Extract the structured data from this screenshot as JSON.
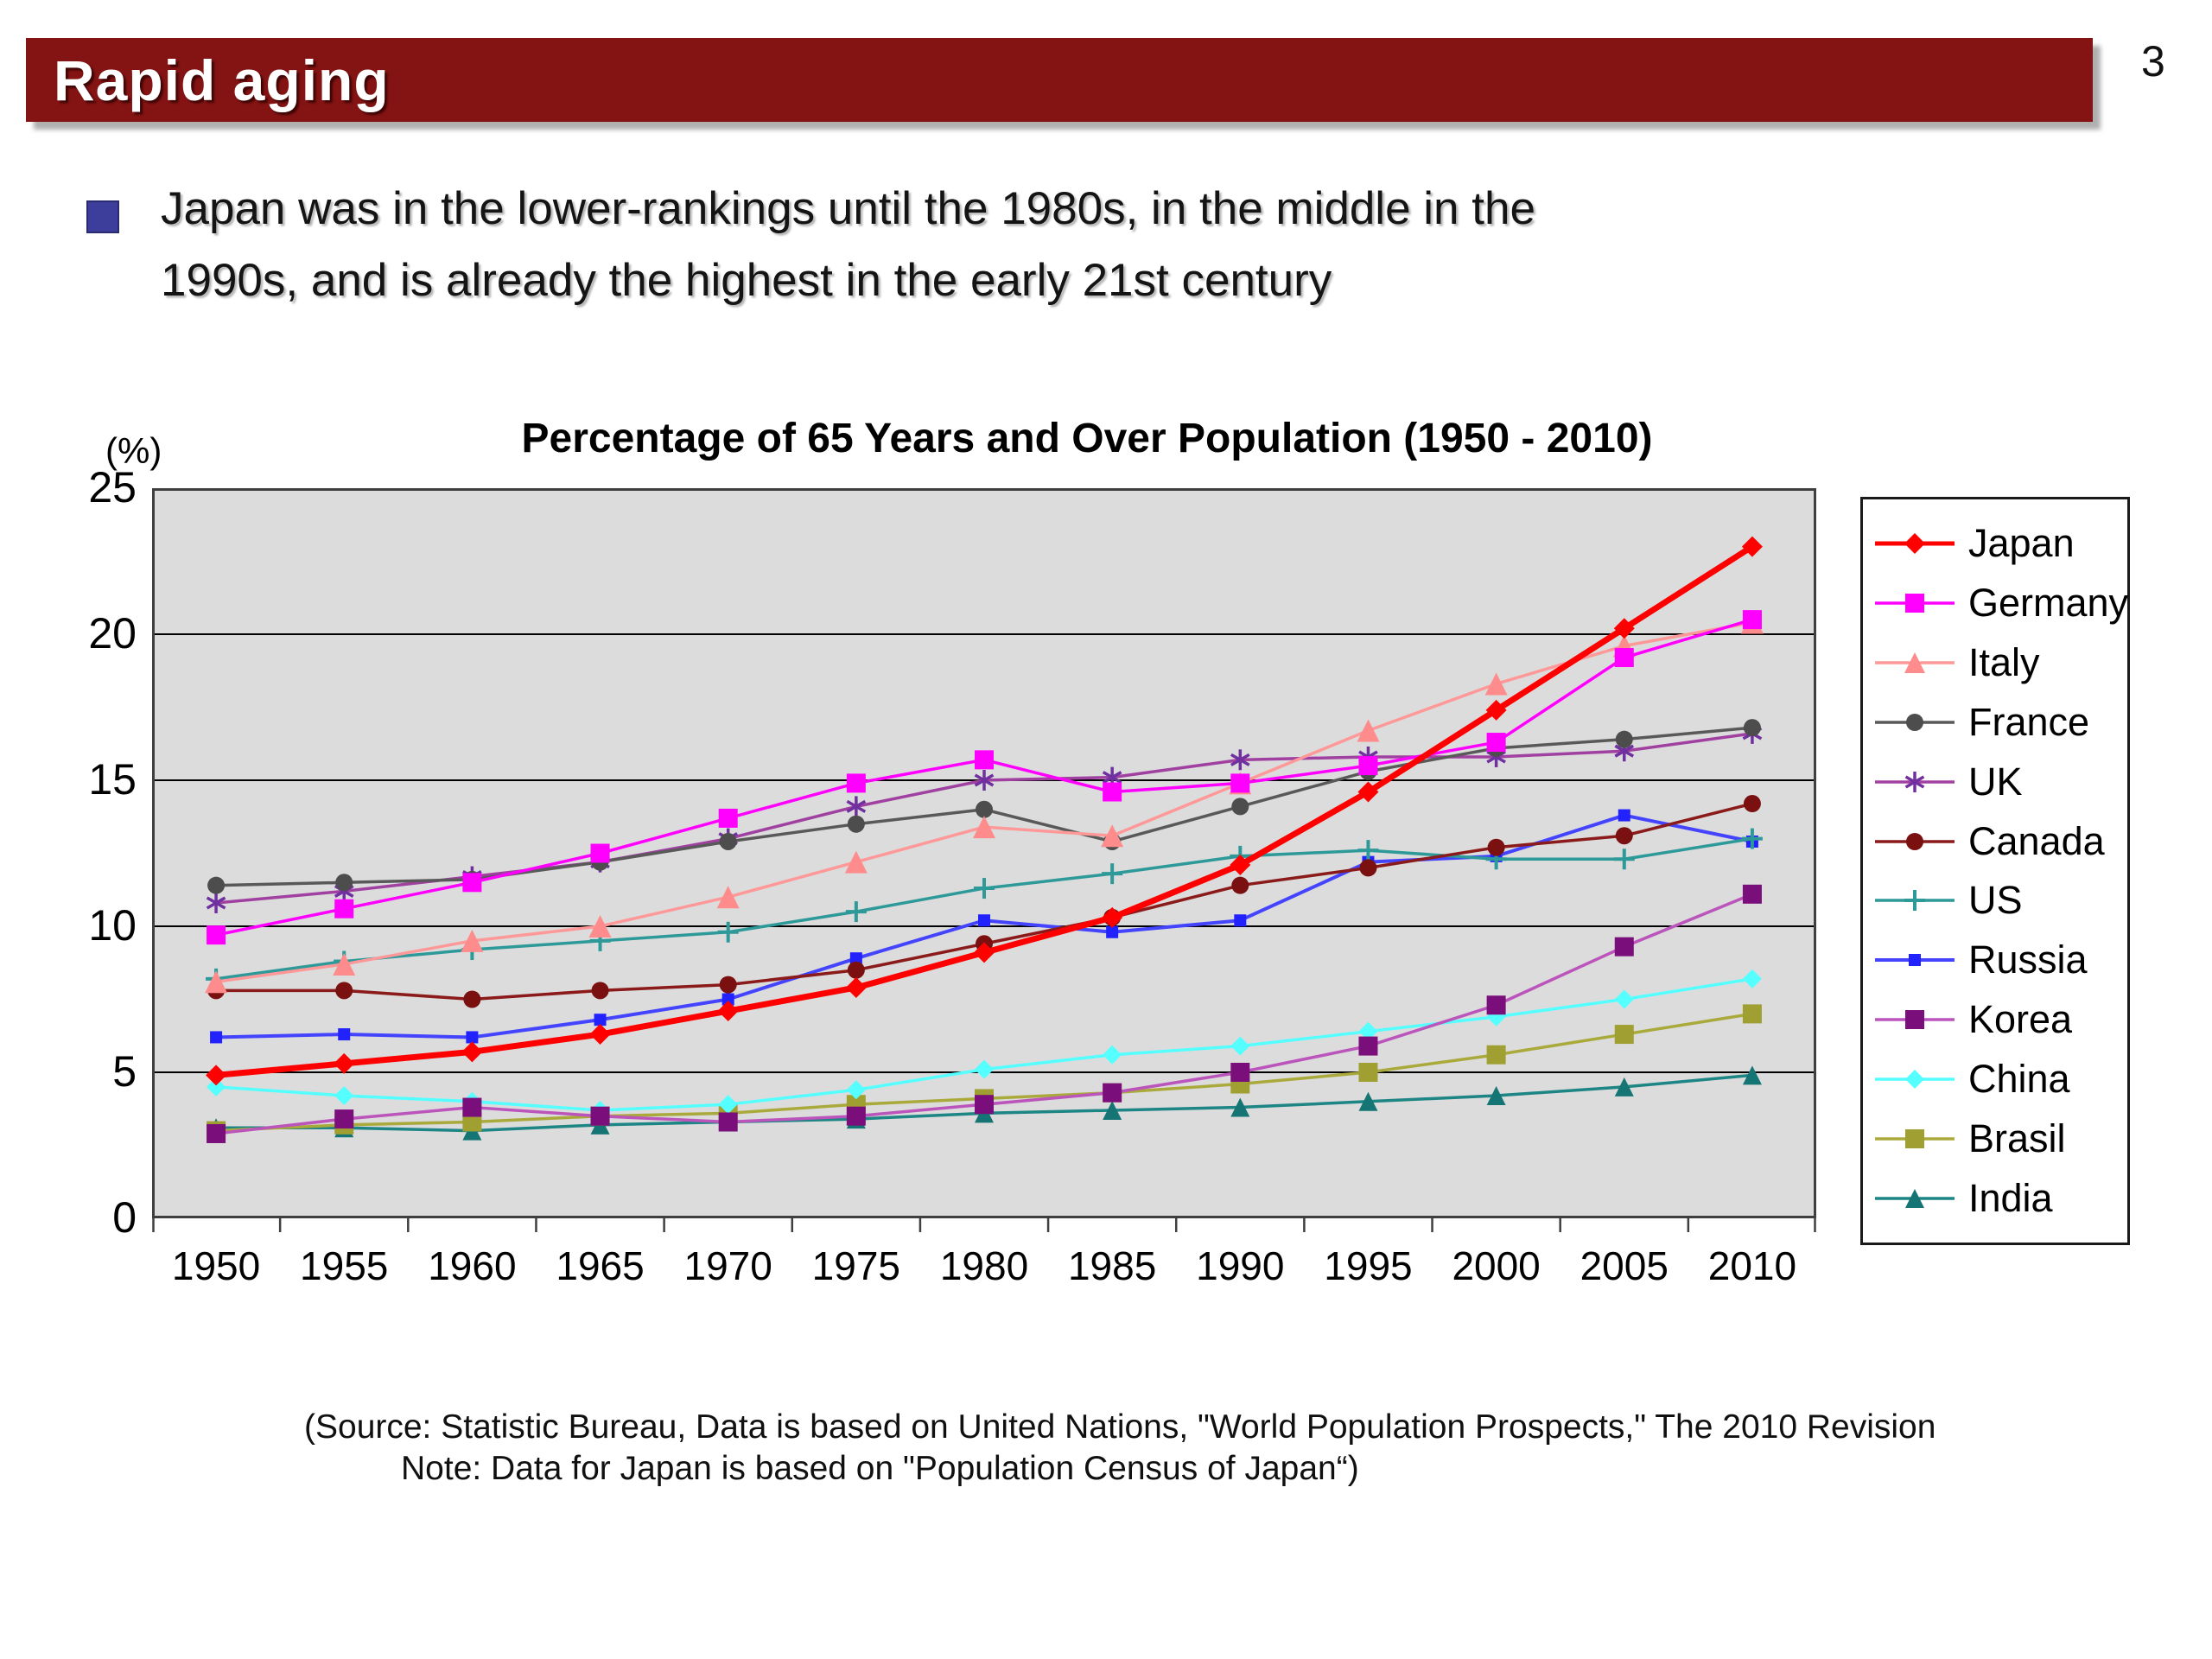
{
  "page": {
    "number": "3"
  },
  "header": {
    "title": "Rapid aging",
    "bar_color": "#841313"
  },
  "bullet": {
    "marker_color": "#3D3D9B",
    "line1": "Japan was in the lower-rankings until the 1980s, in the middle in the",
    "line2": "1990s, and is already the highest in the early 21st century"
  },
  "chart": {
    "unit_label": "(%)",
    "title": "Percentage of 65 Years and Over Population (1950 - 2010)",
    "plot_bg": "#DCDCDC",
    "grid_color": "#000000",
    "border_color": "#3F3F3F"
  },
  "chart_data": {
    "type": "line",
    "title": "Percentage of 65 Years and Over Population (1950 - 2010)",
    "xlabel": "",
    "ylabel": "(%)",
    "ylim": [
      0,
      25
    ],
    "y_ticks": [
      25,
      20,
      15,
      10,
      5,
      0
    ],
    "grid": true,
    "legend_position": "right",
    "categories": [
      1950,
      1955,
      1960,
      1965,
      1970,
      1975,
      1980,
      1985,
      1990,
      1995,
      2000,
      2005,
      2010
    ],
    "series": [
      {
        "name": "Japan",
        "color": "#FF0000",
        "marker": "diamond",
        "marker_color": "#FF0000",
        "line_width": 7,
        "marker_size": 12,
        "values": [
          4.9,
          5.3,
          5.7,
          6.3,
          7.1,
          7.9,
          9.1,
          10.3,
          12.1,
          14.6,
          17.4,
          20.2,
          23.0
        ]
      },
      {
        "name": "Germany",
        "color": "#FF00FF",
        "marker": "square",
        "marker_color": "#FF00FF",
        "line_width": 3.5,
        "marker_size": 11,
        "values": [
          9.7,
          10.6,
          11.5,
          12.5,
          13.7,
          14.9,
          15.7,
          14.6,
          14.9,
          15.5,
          16.3,
          19.2,
          20.5
        ]
      },
      {
        "name": "Italy",
        "color": "#FF9999",
        "marker": "triangle",
        "marker_color": "#FF8C8C",
        "line_width": 3.5,
        "marker_size": 13,
        "values": [
          8.1,
          8.7,
          9.5,
          10.0,
          11.0,
          12.2,
          13.4,
          13.1,
          14.9,
          16.7,
          18.3,
          19.6,
          20.4
        ]
      },
      {
        "name": "France",
        "color": "#595959",
        "marker": "circle",
        "marker_color": "#4D4D4D",
        "line_width": 3.5,
        "marker_size": 10,
        "values": [
          11.4,
          11.5,
          11.6,
          12.2,
          12.9,
          13.5,
          14.0,
          12.9,
          14.1,
          15.3,
          16.1,
          16.4,
          16.8
        ]
      },
      {
        "name": "UK",
        "color": "#A040A0",
        "marker": "asterisk",
        "marker_color": "#7030A0",
        "line_width": 3.5,
        "marker_size": 12,
        "values": [
          10.8,
          11.2,
          11.7,
          12.2,
          13.0,
          14.1,
          15.0,
          15.1,
          15.7,
          15.8,
          15.8,
          16.0,
          16.6
        ]
      },
      {
        "name": "Canada",
        "color": "#8B1A1A",
        "marker": "circle",
        "marker_color": "#7B1010",
        "line_width": 3.5,
        "marker_size": 10,
        "values": [
          7.8,
          7.8,
          7.5,
          7.8,
          8.0,
          8.5,
          9.4,
          10.3,
          11.4,
          12.0,
          12.7,
          13.1,
          14.2
        ]
      },
      {
        "name": "US",
        "color": "#2E9999",
        "marker": "plus",
        "marker_color": "#2E9999",
        "line_width": 3.5,
        "marker_size": 12,
        "values": [
          8.2,
          8.8,
          9.2,
          9.5,
          9.8,
          10.5,
          11.3,
          11.8,
          12.4,
          12.6,
          12.3,
          12.3,
          13.0
        ]
      },
      {
        "name": "Russia",
        "color": "#4444FF",
        "marker": "square",
        "marker_color": "#2222FF",
        "line_width": 4,
        "marker_size": 7,
        "values": [
          6.2,
          6.3,
          6.2,
          6.8,
          7.5,
          8.9,
          10.2,
          9.8,
          10.2,
          12.2,
          12.4,
          13.8,
          12.9
        ]
      },
      {
        "name": "Korea",
        "color": "#BB55BB",
        "marker": "square",
        "marker_color": "#7A0E7A",
        "line_width": 3.5,
        "marker_size": 11,
        "values": [
          2.9,
          3.4,
          3.8,
          3.5,
          3.3,
          3.5,
          3.9,
          4.3,
          5.0,
          5.9,
          7.3,
          9.3,
          11.1
        ]
      },
      {
        "name": "China",
        "color": "#55FFFF",
        "marker": "diamond",
        "marker_color": "#55FFFF",
        "line_width": 3.5,
        "marker_size": 11,
        "values": [
          4.5,
          4.2,
          4.0,
          3.7,
          3.9,
          4.4,
          5.1,
          5.6,
          5.9,
          6.4,
          6.9,
          7.5,
          8.2
        ]
      },
      {
        "name": "Brasil",
        "color": "#AAAA3C",
        "marker": "square",
        "marker_color": "#A0A032",
        "line_width": 3.5,
        "marker_size": 11,
        "values": [
          3.0,
          3.2,
          3.3,
          3.5,
          3.6,
          3.9,
          4.1,
          4.3,
          4.6,
          5.0,
          5.6,
          6.3,
          7.0
        ]
      },
      {
        "name": "India",
        "color": "#1E8585",
        "marker": "triangle",
        "marker_color": "#157575",
        "line_width": 3.5,
        "marker_size": 11,
        "values": [
          3.1,
          3.1,
          3.0,
          3.2,
          3.3,
          3.4,
          3.6,
          3.7,
          3.8,
          4.0,
          4.2,
          4.5,
          4.9
        ]
      }
    ]
  },
  "source": {
    "line1": "(Source: Statistic Bureau, Data is based on United Nations, \"World Population Prospects,\" The 2010 Revision",
    "line2": "Note: Data for Japan is based on \"Population Census of Japan“)"
  }
}
